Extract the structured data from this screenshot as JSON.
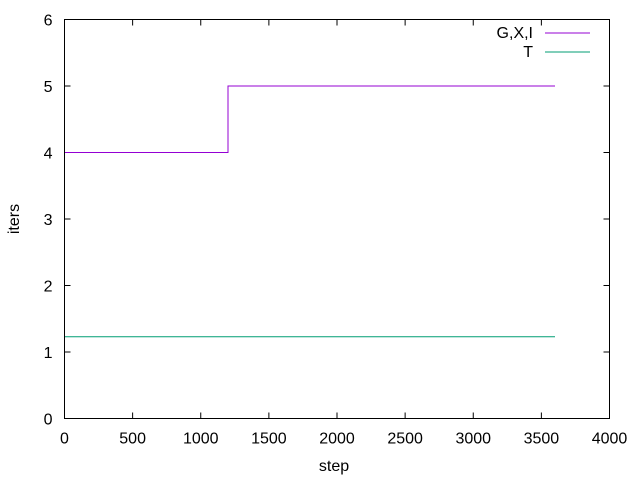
{
  "chart_data": {
    "type": "line",
    "title": "",
    "xlabel": "step",
    "ylabel": "iters",
    "xlim": [
      0,
      4000
    ],
    "ylim": [
      0,
      6
    ],
    "x_ticks": [
      0,
      500,
      1000,
      1500,
      2000,
      2500,
      3000,
      3500,
      4000
    ],
    "y_ticks": [
      0,
      1,
      2,
      3,
      4,
      5,
      6
    ],
    "x_tick_labels": [
      "0",
      "500",
      "1000",
      "1500",
      "2000",
      "2500",
      "3000",
      "3500",
      "4000"
    ],
    "y_tick_labels": [
      "0",
      "1",
      "2",
      "3",
      "4",
      "5",
      "6"
    ],
    "grid": false,
    "legend_position": "top-right",
    "series": [
      {
        "name": "G,X,I",
        "color": "#9400d3",
        "style": "step",
        "x": [
          0,
          1200,
          1200,
          3600
        ],
        "y": [
          4,
          4,
          5,
          5
        ]
      },
      {
        "name": "T",
        "color": "#009e73",
        "style": "line",
        "x": [
          0,
          3600
        ],
        "y": [
          1.23,
          1.23
        ]
      }
    ]
  }
}
